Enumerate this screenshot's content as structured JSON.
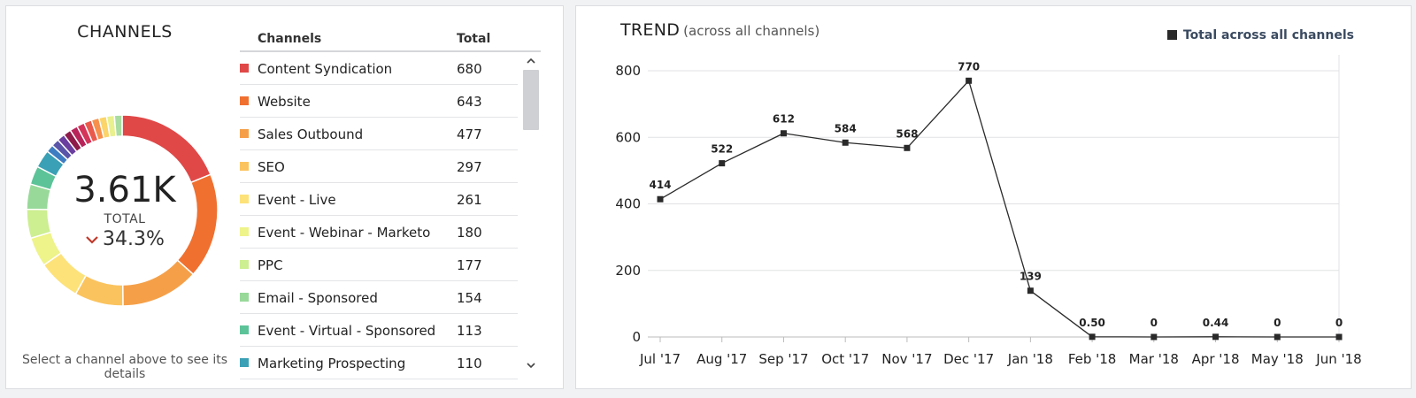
{
  "channels_panel": {
    "title": "CHANNELS",
    "total_value": "3.61K",
    "total_label": "TOTAL",
    "change": "34.3%",
    "change_direction": "down",
    "change_color": "#c0392b",
    "hint": "Select a channel above to see its details",
    "table": {
      "headers": [
        "Channels",
        "Total"
      ],
      "rows": [
        {
          "name": "Content Syndication",
          "total": "680",
          "color": "#e04848"
        },
        {
          "name": "Website",
          "total": "643",
          "color": "#f07030"
        },
        {
          "name": "Sales Outbound",
          "total": "477",
          "color": "#f5a049"
        },
        {
          "name": "SEO",
          "total": "297",
          "color": "#fbc35e"
        },
        {
          "name": "Event - Live",
          "total": "261",
          "color": "#fde27a"
        },
        {
          "name": "Event - Webinar - Marketo",
          "total": "180",
          "color": "#eef38a"
        },
        {
          "name": "PPC",
          "total": "177",
          "color": "#cdee91"
        },
        {
          "name": "Email - Sponsored",
          "total": "154",
          "color": "#98d99a"
        },
        {
          "name": "Event - Virtual - Sponsored",
          "total": "113",
          "color": "#5cc398"
        },
        {
          "name": "Marketing Prospecting",
          "total": "110",
          "color": "#3aa0b5"
        }
      ]
    },
    "donut_other_colors": [
      "#3f7dc2",
      "#5a55a8",
      "#6b3fa0",
      "#8e1b4a",
      "#b8245a",
      "#d5345a",
      "#ea5a4c",
      "#f7904a",
      "#fbd46a",
      "#e9f08e",
      "#a8dca0"
    ]
  },
  "trend_panel": {
    "title": "TREND",
    "subtitle": "(across all channels)",
    "legend_label": "Total across all channels",
    "chart_data": {
      "type": "line",
      "categories": [
        "Jul '17",
        "Aug '17",
        "Sep '17",
        "Oct '17",
        "Nov '17",
        "Dec '17",
        "Jan '18",
        "Feb '18",
        "Mar '18",
        "Apr '18",
        "May '18",
        "Jun '18"
      ],
      "series": [
        {
          "name": "Total across all channels",
          "values": [
            414,
            522,
            612,
            584,
            568,
            770,
            139,
            0.5,
            0,
            0.44,
            0,
            0
          ],
          "labels": [
            "414",
            "522",
            "612",
            "584",
            "568",
            "770",
            "139",
            "0.50",
            "0",
            "0.44",
            "0",
            "0"
          ]
        }
      ],
      "yticks": [
        0,
        200,
        400,
        600,
        800
      ],
      "ylim": [
        0,
        800
      ],
      "grid": true,
      "legend_position": "top-right",
      "line_color": "#2a2a2a"
    }
  }
}
